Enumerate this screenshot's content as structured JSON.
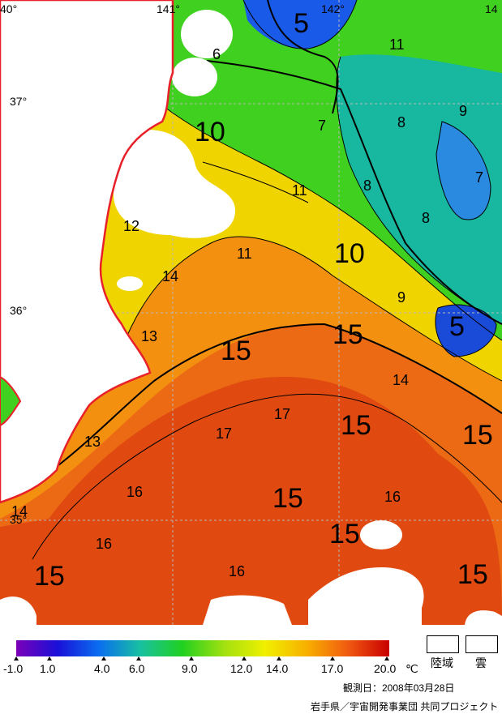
{
  "map": {
    "longitude_labels": [
      "40°",
      "141°",
      "142°",
      "14"
    ],
    "latitude_labels": [
      "37°",
      "36°",
      "35°"
    ],
    "contour_labels": [
      {
        "text": "5",
        "size": "l"
      },
      {
        "text": "6",
        "size": "s"
      },
      {
        "text": "11",
        "size": "s"
      },
      {
        "text": "7",
        "size": "s"
      },
      {
        "text": "9",
        "size": "s"
      },
      {
        "text": "8",
        "size": "s"
      },
      {
        "text": "10",
        "size": "l"
      },
      {
        "text": "7",
        "size": "s"
      },
      {
        "text": "11",
        "size": "s"
      },
      {
        "text": "8",
        "size": "s"
      },
      {
        "text": "8",
        "size": "s"
      },
      {
        "text": "12",
        "size": "s"
      },
      {
        "text": "11",
        "size": "s"
      },
      {
        "text": "10",
        "size": "l"
      },
      {
        "text": "14",
        "size": "s"
      },
      {
        "text": "9",
        "size": "s"
      },
      {
        "text": "5",
        "size": "l"
      },
      {
        "text": "13",
        "size": "s"
      },
      {
        "text": "15",
        "size": "l"
      },
      {
        "text": "15",
        "size": "l"
      },
      {
        "text": "14",
        "size": "s"
      },
      {
        "text": "17",
        "size": "s"
      },
      {
        "text": "15",
        "size": "l"
      },
      {
        "text": "15",
        "size": "l"
      },
      {
        "text": "17",
        "size": "s"
      },
      {
        "text": "13",
        "size": "s"
      },
      {
        "text": "16",
        "size": "s"
      },
      {
        "text": "15",
        "size": "l"
      },
      {
        "text": "16",
        "size": "s"
      },
      {
        "text": "14",
        "size": "s"
      },
      {
        "text": "15",
        "size": "l"
      },
      {
        "text": "16",
        "size": "s"
      },
      {
        "text": "15",
        "size": "l"
      },
      {
        "text": "16",
        "size": "s"
      },
      {
        "text": "15",
        "size": "l"
      }
    ],
    "colors": {
      "coastline": "#e8202a",
      "land_mask": "#ffffff",
      "cloud_mask": "#ffffff",
      "grid": "#b8b8b8"
    }
  },
  "colorbar": {
    "gradient_colors": [
      "#7a00b8",
      "#1a10d8",
      "#0a6ef0",
      "#18c0a0",
      "#20d020",
      "#a0e010",
      "#f0f000",
      "#f8b000",
      "#f05a10",
      "#c80000"
    ],
    "tick_labels": [
      "-1.0",
      "1.0",
      "4.0",
      "6.0",
      "9.0",
      "12.0",
      "14.0",
      "17.0",
      "20.0"
    ],
    "unit": "℃"
  },
  "legend": {
    "land_label": "陸域",
    "cloud_label": "雲"
  },
  "footer": {
    "observation_date": "観測日：2008年03月28日",
    "credit": "岩手県／宇宙開発事業団 共同プロジェクト"
  }
}
